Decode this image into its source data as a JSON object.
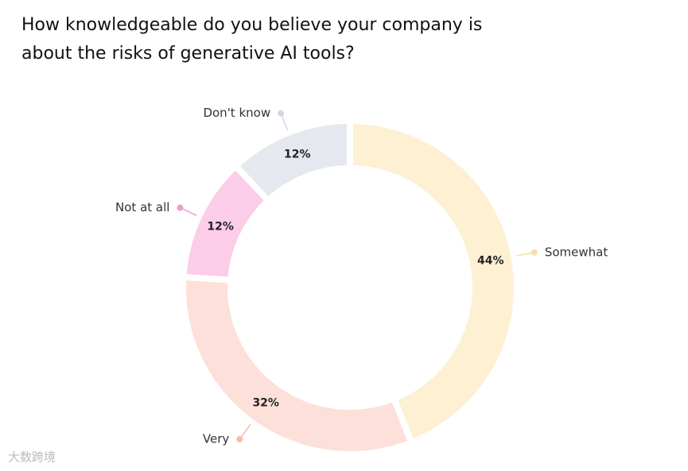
{
  "chart_data": {
    "type": "donut",
    "title": [
      "How knowledgeable do you believe your company is",
      "about the risks of generative AI tools?"
    ],
    "categories": [
      "Somewhat",
      "Very",
      "Not at all",
      "Don't know"
    ],
    "values": [
      44,
      32,
      12,
      12
    ],
    "value_labels": [
      "44%",
      "32%",
      "12%",
      "12%"
    ],
    "colors": [
      "#fdf0d3",
      "#fde0da",
      "#fbcde8",
      "#e6e8ef"
    ],
    "dot_colors": [
      "#f9dfa8",
      "#f8b9ab",
      "#f29acb",
      "#d4d7e2"
    ],
    "watermark": "大数跨境"
  }
}
